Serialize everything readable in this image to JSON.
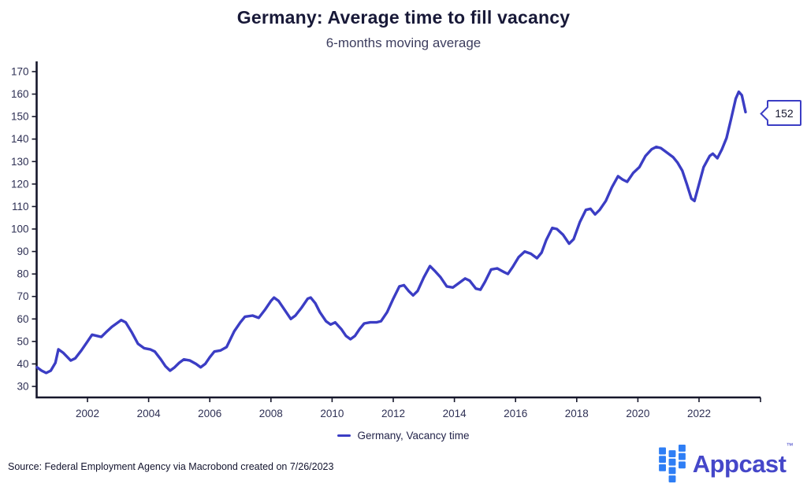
{
  "header": {
    "title": "Germany: Average time to fill vacancy",
    "subtitle": "6-months moving average"
  },
  "legend": {
    "label": "Germany, Vacancy time"
  },
  "annotation": {
    "value": "152"
  },
  "footer": {
    "source": "Source: Federal Employment Agency via Macrobond created on 7/26/2023",
    "brand_name": "Appcast",
    "brand_tm": "™"
  },
  "colors": {
    "line": "#3b3dc4",
    "axis": "#16172b",
    "tick_label": "#2e3054",
    "logo_square": "#2e7ef5",
    "logo_text": "#4547c9"
  },
  "chart_data": {
    "type": "line",
    "title": "Germany: Average time to fill vacancy",
    "subtitle": "6-months moving average",
    "xlabel": "",
    "ylabel": "",
    "ylim": [
      30,
      170
    ],
    "xlim": [
      2000.3,
      2024.0
    ],
    "grid": false,
    "legend_position": "bottom",
    "x_ticks": [
      2002,
      2004,
      2006,
      2008,
      2010,
      2012,
      2014,
      2016,
      2018,
      2020,
      2022
    ],
    "y_ticks": [
      30,
      40,
      50,
      60,
      70,
      80,
      90,
      100,
      110,
      120,
      130,
      140,
      150,
      160,
      170
    ],
    "end_label": 152,
    "series": [
      {
        "name": "Germany, Vacancy time",
        "points": [
          [
            2000.35,
            38.5
          ],
          [
            2000.5,
            37
          ],
          [
            2000.65,
            36
          ],
          [
            2000.8,
            37
          ],
          [
            2000.95,
            40.5
          ],
          [
            2001.05,
            46.5
          ],
          [
            2001.2,
            45
          ],
          [
            2001.45,
            41.5
          ],
          [
            2001.6,
            42.5
          ],
          [
            2001.8,
            46
          ],
          [
            2002.0,
            50
          ],
          [
            2002.15,
            53
          ],
          [
            2002.3,
            52.5
          ],
          [
            2002.45,
            52
          ],
          [
            2002.6,
            54
          ],
          [
            2002.8,
            56.5
          ],
          [
            2003.0,
            58.5
          ],
          [
            2003.1,
            59.5
          ],
          [
            2003.25,
            58.5
          ],
          [
            2003.45,
            54
          ],
          [
            2003.65,
            49
          ],
          [
            2003.85,
            47
          ],
          [
            2004.05,
            46.5
          ],
          [
            2004.2,
            45.5
          ],
          [
            2004.4,
            42
          ],
          [
            2004.55,
            39
          ],
          [
            2004.7,
            37
          ],
          [
            2004.85,
            38.5
          ],
          [
            2005.0,
            40.5
          ],
          [
            2005.15,
            42
          ],
          [
            2005.35,
            41.5
          ],
          [
            2005.55,
            40
          ],
          [
            2005.7,
            38.5
          ],
          [
            2005.85,
            40
          ],
          [
            2006.0,
            43
          ],
          [
            2006.15,
            45.5
          ],
          [
            2006.35,
            46
          ],
          [
            2006.55,
            47.5
          ],
          [
            2006.8,
            54.5
          ],
          [
            2007.0,
            58.5
          ],
          [
            2007.15,
            61
          ],
          [
            2007.4,
            61.5
          ],
          [
            2007.6,
            60.5
          ],
          [
            2007.8,
            64
          ],
          [
            2008.0,
            68
          ],
          [
            2008.1,
            69.5
          ],
          [
            2008.25,
            68
          ],
          [
            2008.45,
            64
          ],
          [
            2008.65,
            60
          ],
          [
            2008.8,
            61.5
          ],
          [
            2009.0,
            65
          ],
          [
            2009.2,
            69
          ],
          [
            2009.3,
            69.5
          ],
          [
            2009.45,
            67
          ],
          [
            2009.6,
            63
          ],
          [
            2009.8,
            59
          ],
          [
            2009.95,
            57.5
          ],
          [
            2010.1,
            58.5
          ],
          [
            2010.3,
            55.5
          ],
          [
            2010.45,
            52.5
          ],
          [
            2010.6,
            51
          ],
          [
            2010.75,
            52.5
          ],
          [
            2010.9,
            55.5
          ],
          [
            2011.05,
            58
          ],
          [
            2011.25,
            58.5
          ],
          [
            2011.45,
            58.5
          ],
          [
            2011.6,
            59
          ],
          [
            2011.8,
            63
          ],
          [
            2012.0,
            69
          ],
          [
            2012.2,
            74.5
          ],
          [
            2012.35,
            75
          ],
          [
            2012.5,
            72.5
          ],
          [
            2012.65,
            70.5
          ],
          [
            2012.8,
            72.5
          ],
          [
            2013.0,
            78.5
          ],
          [
            2013.2,
            83.5
          ],
          [
            2013.35,
            81.5
          ],
          [
            2013.55,
            78.5
          ],
          [
            2013.75,
            74.5
          ],
          [
            2013.95,
            74
          ],
          [
            2014.15,
            76
          ],
          [
            2014.35,
            78
          ],
          [
            2014.5,
            77
          ],
          [
            2014.7,
            73.5
          ],
          [
            2014.85,
            73
          ],
          [
            2015.0,
            76.5
          ],
          [
            2015.2,
            82
          ],
          [
            2015.4,
            82.5
          ],
          [
            2015.6,
            81
          ],
          [
            2015.75,
            80
          ],
          [
            2015.9,
            83
          ],
          [
            2016.1,
            87.5
          ],
          [
            2016.3,
            90
          ],
          [
            2016.5,
            89
          ],
          [
            2016.7,
            87
          ],
          [
            2016.85,
            89.5
          ],
          [
            2017.0,
            95
          ],
          [
            2017.2,
            100.5
          ],
          [
            2017.35,
            100
          ],
          [
            2017.55,
            97.5
          ],
          [
            2017.75,
            93.5
          ],
          [
            2017.9,
            95.5
          ],
          [
            2018.1,
            103
          ],
          [
            2018.3,
            108.5
          ],
          [
            2018.45,
            109
          ],
          [
            2018.6,
            106.5
          ],
          [
            2018.75,
            108.5
          ],
          [
            2018.95,
            112.5
          ],
          [
            2019.15,
            118.5
          ],
          [
            2019.35,
            123.5
          ],
          [
            2019.5,
            122
          ],
          [
            2019.65,
            121
          ],
          [
            2019.85,
            125
          ],
          [
            2020.05,
            127.5
          ],
          [
            2020.25,
            132.5
          ],
          [
            2020.45,
            135.5
          ],
          [
            2020.6,
            136.5
          ],
          [
            2020.75,
            136
          ],
          [
            2020.95,
            134
          ],
          [
            2021.15,
            132
          ],
          [
            2021.3,
            129.5
          ],
          [
            2021.45,
            126
          ],
          [
            2021.6,
            120
          ],
          [
            2021.75,
            113.5
          ],
          [
            2021.85,
            112.5
          ],
          [
            2022.0,
            120
          ],
          [
            2022.15,
            127.5
          ],
          [
            2022.35,
            132.5
          ],
          [
            2022.45,
            133.5
          ],
          [
            2022.6,
            131.5
          ],
          [
            2022.75,
            135.5
          ],
          [
            2022.9,
            140.5
          ],
          [
            2023.05,
            149
          ],
          [
            2023.2,
            158
          ],
          [
            2023.3,
            161
          ],
          [
            2023.4,
            159.5
          ],
          [
            2023.52,
            152
          ]
        ]
      }
    ]
  }
}
